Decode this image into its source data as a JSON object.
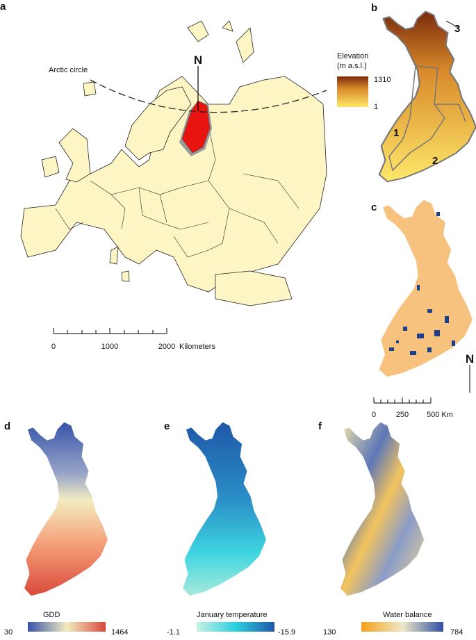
{
  "panels": {
    "a": {
      "letter": "a",
      "arctic_label": "Arctic circle",
      "north": "N",
      "scale": {
        "ticks": [
          "0",
          "1000",
          "2000"
        ],
        "unit": "Kilometers"
      }
    },
    "b": {
      "letter": "b",
      "legend": {
        "title_lines": [
          "Elevation",
          "(m a.s.l.)"
        ],
        "max": "1310",
        "min": "1"
      },
      "regions": [
        "1",
        "2",
        "3"
      ]
    },
    "c": {
      "letter": "c",
      "north": "N",
      "scale": {
        "ticks": [
          "0",
          "250",
          "500 Km"
        ]
      }
    },
    "d": {
      "letter": "d",
      "legend": {
        "title": "GDD",
        "min": "30",
        "max": "1464"
      }
    },
    "e": {
      "letter": "e",
      "legend": {
        "title": "January temperature",
        "min": "-1.1",
        "max": "-15.9"
      }
    },
    "f": {
      "letter": "f",
      "legend": {
        "title": "Water balance",
        "min": "130",
        "max": "784"
      }
    }
  }
}
